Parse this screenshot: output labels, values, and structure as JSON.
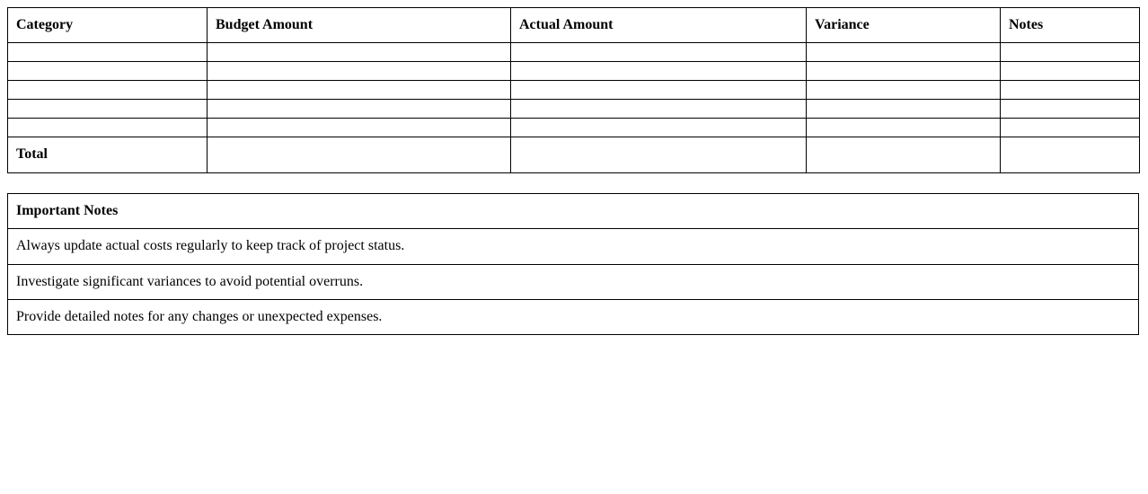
{
  "colors": {
    "background": "#ffffff",
    "border": "#000000",
    "text": "#000000"
  },
  "budget_table": {
    "columns": [
      "Category",
      "Budget Amount",
      "Actual Amount",
      "Variance",
      "Notes"
    ],
    "rows": [
      [
        "",
        "",
        "",
        "",
        ""
      ],
      [
        "",
        "",
        "",
        "",
        ""
      ],
      [
        "",
        "",
        "",
        "",
        ""
      ],
      [
        "",
        "",
        "",
        "",
        ""
      ],
      [
        "",
        "",
        "",
        "",
        ""
      ]
    ],
    "total_row": {
      "label": "Total",
      "values": [
        "",
        "",
        "",
        ""
      ]
    }
  },
  "notes_table": {
    "header": "Important Notes",
    "notes": [
      "Always update actual costs regularly to keep track of project status.",
      "Investigate significant variances to avoid potential overruns.",
      "Provide detailed notes for any changes or unexpected expenses."
    ]
  }
}
